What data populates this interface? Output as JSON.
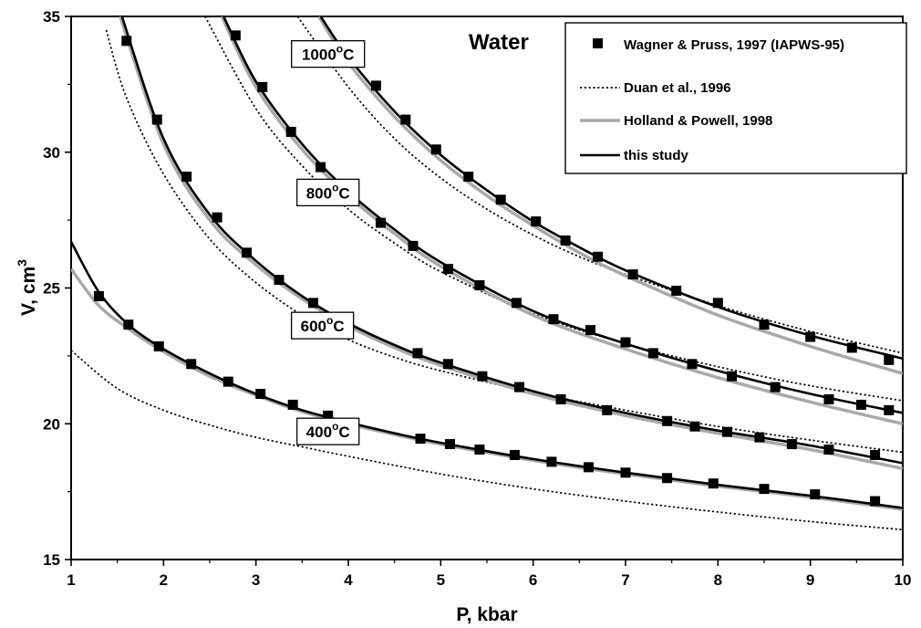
{
  "chart_data": {
    "type": "line",
    "title": "Water",
    "xlabel": "P, kbar",
    "ylabel": "V, cm3",
    "ylabel_main": "V, cm",
    "ylabel_sup": "3",
    "xlim": [
      1,
      10
    ],
    "ylim": [
      15,
      35
    ],
    "x_ticks": [
      1,
      2,
      3,
      4,
      5,
      6,
      7,
      8,
      9,
      10
    ],
    "y_ticks": [
      15,
      20,
      25,
      30,
      35
    ],
    "x_tick_labels": [
      "1",
      "2",
      "3",
      "4",
      "5",
      "6",
      "7",
      "8",
      "9",
      "10"
    ],
    "y_tick_labels": [
      "15",
      "20",
      "25",
      "30",
      "35"
    ],
    "grid": false,
    "legend_position": "top-right",
    "legend": [
      {
        "label": "Wagner & Pruss, 1997 (IAPWS-95)",
        "style": "square-markers",
        "color": "#000000"
      },
      {
        "label": "Duan et al., 1996",
        "style": "dotted-line",
        "color": "#000000"
      },
      {
        "label": "Holland & Powell, 1998",
        "style": "solid-line",
        "color": "#a9a9a9"
      },
      {
        "label": "this study",
        "style": "solid-line",
        "color": "#000000"
      }
    ],
    "isotherms": [
      {
        "label_main": "400",
        "label_sup": "o",
        "label_unit": "C",
        "label_at": [
          3.78,
          19.7
        ],
        "wagner_pruss": [
          [
            1.3,
            24.7
          ],
          [
            1.62,
            23.65
          ],
          [
            1.95,
            22.85
          ],
          [
            2.3,
            22.2
          ],
          [
            2.7,
            21.55
          ],
          [
            3.05,
            21.1
          ],
          [
            3.4,
            20.7
          ],
          [
            3.78,
            20.3
          ],
          [
            4.78,
            19.45
          ],
          [
            5.1,
            19.25
          ],
          [
            5.42,
            19.05
          ],
          [
            5.8,
            18.85
          ],
          [
            6.2,
            18.6
          ],
          [
            6.6,
            18.4
          ],
          [
            7.0,
            18.2
          ],
          [
            7.45,
            18.0
          ],
          [
            7.95,
            17.8
          ],
          [
            8.5,
            17.6
          ],
          [
            9.05,
            17.4
          ],
          [
            9.7,
            17.15
          ]
        ],
        "this_study": [
          [
            1.0,
            26.7
          ],
          [
            1.3,
            24.85
          ],
          [
            1.62,
            23.65
          ],
          [
            2.0,
            22.75
          ],
          [
            2.5,
            21.85
          ],
          [
            3.0,
            21.1
          ],
          [
            3.5,
            20.5
          ],
          [
            4.0,
            20.05
          ],
          [
            4.5,
            19.65
          ],
          [
            5.0,
            19.3
          ],
          [
            6.0,
            18.7
          ],
          [
            7.0,
            18.2
          ],
          [
            8.0,
            17.75
          ],
          [
            9.0,
            17.35
          ],
          [
            10.0,
            16.9
          ]
        ],
        "holland_powell": [
          [
            1.0,
            25.7
          ],
          [
            1.3,
            24.35
          ],
          [
            1.62,
            23.5
          ],
          [
            2.0,
            22.65
          ],
          [
            2.5,
            21.75
          ],
          [
            3.0,
            21.05
          ],
          [
            3.5,
            20.45
          ],
          [
            4.0,
            20.0
          ],
          [
            4.5,
            19.6
          ],
          [
            5.0,
            19.25
          ],
          [
            6.0,
            18.65
          ],
          [
            7.0,
            18.15
          ],
          [
            8.0,
            17.7
          ],
          [
            9.0,
            17.3
          ],
          [
            10.0,
            16.85
          ]
        ],
        "duan": [
          [
            1.0,
            22.7
          ],
          [
            1.5,
            21.3
          ],
          [
            2.0,
            20.5
          ],
          [
            2.5,
            19.95
          ],
          [
            3.0,
            19.5
          ],
          [
            3.5,
            19.15
          ],
          [
            4.0,
            18.8
          ],
          [
            5.0,
            18.15
          ],
          [
            6.0,
            17.6
          ],
          [
            7.0,
            17.15
          ],
          [
            8.0,
            16.75
          ],
          [
            9.0,
            16.4
          ],
          [
            10.0,
            16.1
          ]
        ]
      },
      {
        "label_main": "600",
        "label_sup": "o",
        "label_unit": "C",
        "label_at": [
          3.72,
          23.6
        ],
        "wagner_pruss": [
          [
            1.6,
            34.1
          ],
          [
            1.93,
            31.2
          ],
          [
            2.25,
            29.1
          ],
          [
            2.58,
            27.6
          ],
          [
            2.9,
            26.3
          ],
          [
            3.25,
            25.3
          ],
          [
            3.62,
            24.45
          ],
          [
            4.75,
            22.6
          ],
          [
            5.08,
            22.2
          ],
          [
            5.45,
            21.75
          ],
          [
            5.85,
            21.35
          ],
          [
            6.3,
            20.9
          ],
          [
            6.8,
            20.5
          ],
          [
            7.45,
            20.1
          ],
          [
            7.75,
            19.9
          ],
          [
            8.1,
            19.7
          ],
          [
            8.45,
            19.5
          ],
          [
            8.8,
            19.25
          ],
          [
            9.2,
            19.05
          ],
          [
            9.7,
            18.85
          ]
        ],
        "this_study": [
          [
            1.55,
            35.0
          ],
          [
            2.0,
            30.5
          ],
          [
            2.5,
            27.7
          ],
          [
            3.0,
            26.0
          ],
          [
            3.5,
            24.7
          ],
          [
            4.0,
            23.7
          ],
          [
            4.5,
            22.9
          ],
          [
            5.0,
            22.25
          ],
          [
            6.0,
            21.2
          ],
          [
            7.0,
            20.4
          ],
          [
            8.0,
            19.75
          ],
          [
            9.0,
            19.2
          ],
          [
            10.0,
            18.55
          ]
        ],
        "holland_powell": [
          [
            1.53,
            35.0
          ],
          [
            2.0,
            30.3
          ],
          [
            2.5,
            27.5
          ],
          [
            3.0,
            25.85
          ],
          [
            3.5,
            24.6
          ],
          [
            4.0,
            23.6
          ],
          [
            4.5,
            22.8
          ],
          [
            5.0,
            22.15
          ],
          [
            6.0,
            21.1
          ],
          [
            7.0,
            20.3
          ],
          [
            8.0,
            19.65
          ],
          [
            9.0,
            19.05
          ],
          [
            10.0,
            18.35
          ]
        ],
        "duan": [
          [
            1.38,
            34.5
          ],
          [
            1.6,
            32.0
          ],
          [
            2.0,
            29.2
          ],
          [
            2.5,
            26.8
          ],
          [
            3.0,
            25.2
          ],
          [
            3.5,
            24.0
          ],
          [
            4.0,
            23.1
          ],
          [
            4.5,
            22.45
          ],
          [
            5.0,
            21.95
          ],
          [
            6.0,
            21.15
          ],
          [
            7.0,
            20.5
          ],
          [
            8.0,
            19.9
          ],
          [
            9.0,
            19.4
          ],
          [
            10.0,
            18.95
          ]
        ]
      },
      {
        "label_main": "800",
        "label_sup": "o",
        "label_unit": "C",
        "label_at": [
          3.78,
          28.5
        ],
        "wagner_pruss": [
          [
            2.78,
            34.3
          ],
          [
            3.07,
            32.4
          ],
          [
            3.38,
            30.75
          ],
          [
            3.7,
            29.45
          ],
          [
            4.35,
            27.4
          ],
          [
            4.7,
            26.55
          ],
          [
            5.08,
            25.7
          ],
          [
            5.42,
            25.1
          ],
          [
            5.82,
            24.45
          ],
          [
            6.22,
            23.85
          ],
          [
            6.62,
            23.45
          ],
          [
            7.0,
            23.0
          ],
          [
            7.3,
            22.6
          ],
          [
            7.72,
            22.2
          ],
          [
            8.15,
            21.75
          ],
          [
            8.62,
            21.35
          ],
          [
            9.2,
            20.9
          ],
          [
            9.55,
            20.7
          ],
          [
            9.85,
            20.5
          ]
        ],
        "this_study": [
          [
            2.65,
            35.0
          ],
          [
            3.0,
            32.6
          ],
          [
            3.5,
            30.3
          ],
          [
            4.0,
            28.55
          ],
          [
            4.5,
            27.15
          ],
          [
            5.0,
            25.95
          ],
          [
            6.0,
            24.15
          ],
          [
            7.0,
            22.95
          ],
          [
            8.0,
            21.95
          ],
          [
            9.0,
            21.1
          ],
          [
            10.0,
            20.4
          ]
        ],
        "holland_powell": [
          [
            2.63,
            35.0
          ],
          [
            3.0,
            32.4
          ],
          [
            3.5,
            30.1
          ],
          [
            4.0,
            28.4
          ],
          [
            4.5,
            27.0
          ],
          [
            5.0,
            25.8
          ],
          [
            6.0,
            24.0
          ],
          [
            7.0,
            22.75
          ],
          [
            8.0,
            21.7
          ],
          [
            9.0,
            20.8
          ],
          [
            10.0,
            20.0
          ]
        ],
        "duan": [
          [
            2.45,
            35.0
          ],
          [
            3.0,
            31.6
          ],
          [
            3.5,
            29.5
          ],
          [
            4.0,
            27.9
          ],
          [
            4.5,
            26.65
          ],
          [
            5.0,
            25.6
          ],
          [
            6.0,
            24.05
          ],
          [
            7.0,
            22.95
          ],
          [
            8.0,
            22.1
          ],
          [
            9.0,
            21.4
          ],
          [
            10.0,
            20.85
          ]
        ]
      },
      {
        "label_main": "1000",
        "label_sup": "o",
        "label_unit": "C",
        "label_at": [
          3.78,
          33.6
        ],
        "wagner_pruss": [
          [
            4.3,
            32.45
          ],
          [
            4.62,
            31.2
          ],
          [
            4.95,
            30.1
          ],
          [
            5.3,
            29.1
          ],
          [
            5.65,
            28.25
          ],
          [
            6.03,
            27.45
          ],
          [
            6.35,
            26.75
          ],
          [
            6.7,
            26.15
          ],
          [
            7.08,
            25.5
          ],
          [
            7.55,
            24.9
          ],
          [
            8.0,
            24.45
          ],
          [
            8.5,
            23.65
          ],
          [
            9.0,
            23.2
          ],
          [
            9.45,
            22.8
          ],
          [
            9.85,
            22.35
          ]
        ],
        "this_study": [
          [
            3.7,
            35.0
          ],
          [
            4.0,
            33.5
          ],
          [
            4.5,
            31.5
          ],
          [
            5.0,
            29.9
          ],
          [
            5.5,
            28.6
          ],
          [
            6.0,
            27.45
          ],
          [
            6.5,
            26.5
          ],
          [
            7.0,
            25.65
          ],
          [
            8.0,
            24.3
          ],
          [
            9.0,
            23.25
          ],
          [
            10.0,
            22.4
          ]
        ],
        "holland_powell": [
          [
            3.68,
            35.0
          ],
          [
            4.0,
            33.3
          ],
          [
            4.5,
            31.3
          ],
          [
            5.0,
            29.7
          ],
          [
            5.5,
            28.4
          ],
          [
            6.0,
            27.3
          ],
          [
            6.5,
            26.3
          ],
          [
            7.0,
            25.45
          ],
          [
            8.0,
            24.0
          ],
          [
            9.0,
            22.85
          ],
          [
            10.0,
            21.85
          ]
        ],
        "duan": [
          [
            3.45,
            35.0
          ],
          [
            4.0,
            32.4
          ],
          [
            4.5,
            30.5
          ],
          [
            5.0,
            29.05
          ],
          [
            5.5,
            27.9
          ],
          [
            6.0,
            26.95
          ],
          [
            6.5,
            26.15
          ],
          [
            7.0,
            25.5
          ],
          [
            8.0,
            24.35
          ],
          [
            9.0,
            23.4
          ],
          [
            10.0,
            22.6
          ]
        ]
      }
    ]
  }
}
